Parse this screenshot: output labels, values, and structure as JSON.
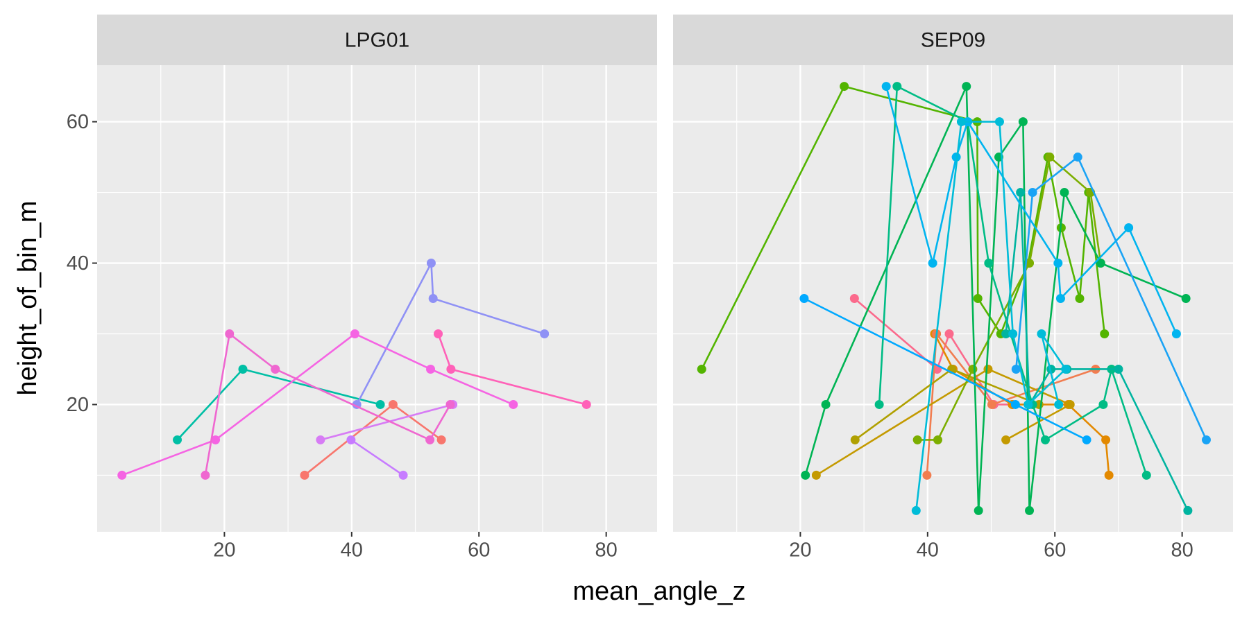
{
  "chart_data": {
    "type": "line",
    "x_label": "mean_angle_z",
    "y_label": "height_of_bin_m",
    "xlim": [
      0,
      88
    ],
    "ylim": [
      2,
      68
    ],
    "xticks": [
      20,
      40,
      60,
      80
    ],
    "yticks": [
      20,
      40,
      60
    ],
    "xminor_ticks": [
      10,
      30,
      50,
      70
    ],
    "yminor_ticks": [
      10,
      30,
      50
    ],
    "grid": true,
    "facets": [
      {
        "title": "LPG01",
        "series": [
          {
            "color": "#00bfa5",
            "x": [
              12.6,
              22.9,
              44.5
            ],
            "y": [
              15,
              25,
              20
            ]
          },
          {
            "color": "#f8766d",
            "x": [
              32.6,
              46.5,
              54.1
            ],
            "y": [
              10,
              20,
              15
            ]
          },
          {
            "color": "#8f91f5",
            "x": [
              40.8,
              52.5,
              52.8,
              70.3
            ],
            "y": [
              20,
              40,
              35,
              30
            ]
          },
          {
            "color": "#c77cff",
            "x": [
              48.1,
              39.9
            ],
            "y": [
              10,
              15
            ]
          },
          {
            "color": "#d77cf5",
            "x": [
              35.1,
              55.9
            ],
            "y": [
              15,
              20
            ]
          },
          {
            "color": "#f564e3",
            "x": [
              3.9,
              18.6,
              40.5,
              52.4,
              65.4
            ],
            "y": [
              10,
              15,
              30,
              25,
              20
            ]
          },
          {
            "color": "#ef67d0",
            "x": [
              17.0,
              20.8,
              28.0,
              52.3,
              55.5
            ],
            "y": [
              10,
              30,
              25,
              15,
              20
            ]
          },
          {
            "color": "#ff61b8",
            "x": [
              53.6,
              55.6,
              76.9
            ],
            "y": [
              30,
              25,
              20
            ]
          }
        ]
      },
      {
        "title": "SEP09",
        "series": [
          {
            "color": "#fb6a8c",
            "x": [
              28.5,
              41.5,
              43.4,
              50.4,
              53.4
            ],
            "y": [
              35,
              25,
              30,
              20,
              20
            ]
          },
          {
            "color": "#e38900",
            "x": [
              41.1,
              44.0,
              53.3,
              62.1,
              68.0,
              68.5
            ],
            "y": [
              30,
              25,
              20,
              20,
              15,
              10
            ]
          },
          {
            "color": "#f17d50",
            "x": [
              39.9,
              41.4,
              50.1,
              66.4
            ],
            "y": [
              10,
              30,
              20,
              25
            ]
          },
          {
            "color": "#c49a00",
            "x": [
              22.5,
              49.5,
              62.4,
              52.3
            ],
            "y": [
              10,
              25,
              20,
              15
            ]
          },
          {
            "color": "#b0a000",
            "x": [
              28.6,
              43.8,
              57.5
            ],
            "y": [
              15,
              25,
              20
            ]
          },
          {
            "color": "#53b400",
            "x": [
              4.5,
              26.9,
              47.8,
              47.9,
              51.5,
              55.8,
              58.9,
              61.0,
              63.9,
              65.3,
              67.8
            ],
            "y": [
              25,
              65,
              60,
              35,
              30,
              40,
              55,
              45,
              35,
              50,
              30
            ]
          },
          {
            "color": "#7cae00",
            "x": [
              38.4,
              41.6,
              47.1,
              56.0,
              59.2,
              65.6,
              67.2
            ],
            "y": [
              15,
              15,
              25,
              40,
              55,
              50,
              40
            ]
          },
          {
            "color": "#00b454",
            "x": [
              20.8,
              24.0,
              46.1,
              48.0,
              51.2,
              55.0,
              56.0,
              61.5,
              67.2,
              80.6
            ],
            "y": [
              10,
              20,
              65,
              5,
              55,
              60,
              5,
              50,
              40,
              35
            ]
          },
          {
            "color": "#00bc85",
            "x": [
              32.4,
              35.2,
              46.3,
              49.6,
              56.5,
              58.5,
              67.6,
              68.9,
              74.4
            ],
            "y": [
              20,
              65,
              60,
              40,
              20,
              15,
              20,
              25,
              10
            ]
          },
          {
            "color": "#00b4a0",
            "x": [
              52.3,
              54.6,
              56.0,
              59.4,
              61.9,
              70.0,
              80.9
            ],
            "y": [
              30,
              50,
              20,
              25,
              25,
              25,
              5
            ]
          },
          {
            "color": "#00b4ef",
            "x": [
              33.5,
              40.8,
              44.5,
              46.3,
              60.5,
              60.9,
              71.6,
              79.1
            ],
            "y": [
              65,
              40,
              55,
              60,
              40,
              35,
              45,
              30
            ]
          },
          {
            "color": "#00bcd8",
            "x": [
              38.2,
              45.3,
              51.3,
              53.4,
              55.8,
              61.7,
              57.9,
              60.6
            ],
            "y": [
              5,
              60,
              60,
              30,
              20,
              25,
              30,
              20
            ]
          },
          {
            "color": "#00a9ff",
            "x": [
              20.6,
              53.8,
              65.0
            ],
            "y": [
              35,
              20,
              15
            ]
          },
          {
            "color": "#1aa3f5",
            "x": [
              53.9,
              56.5,
              63.6,
              83.8
            ],
            "y": [
              25,
              50,
              55,
              15
            ]
          }
        ]
      }
    ]
  }
}
